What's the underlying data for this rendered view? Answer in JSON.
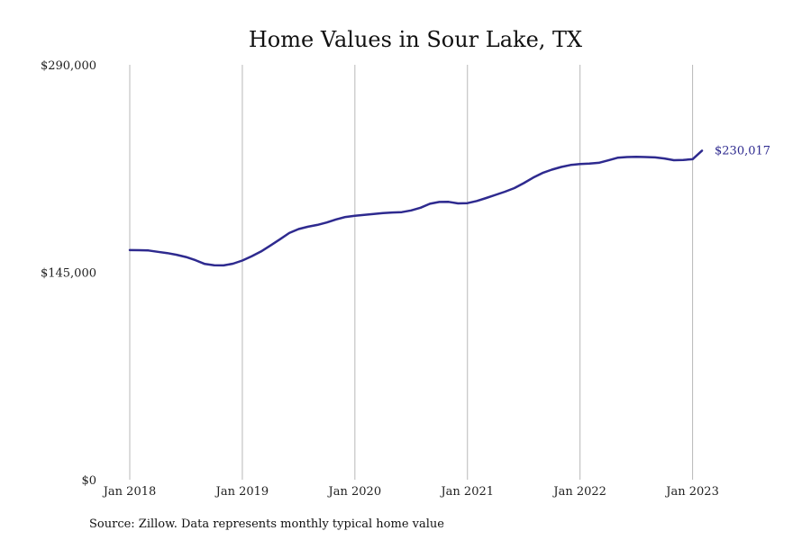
{
  "page": {
    "source_note": "Source: Zillow. Data represents monthly typical home value"
  },
  "colors": {
    "series": "#2e2a8f",
    "grid": "#b8b8b8",
    "text": "#111111"
  },
  "chart_data": {
    "type": "line",
    "title": "Home Values in Sour Lake, TX",
    "xlabel": "",
    "ylabel": "",
    "x_type": "date",
    "xlim": [
      "2018-01",
      "2023-02"
    ],
    "ylim": [
      0,
      290000
    ],
    "grid": {
      "vertical": true,
      "horizontal": false
    },
    "x_ticks": [
      {
        "date": "2018-01",
        "label": "Jan 2018"
      },
      {
        "date": "2019-01",
        "label": "Jan 2019"
      },
      {
        "date": "2020-01",
        "label": "Jan 2020"
      },
      {
        "date": "2021-01",
        "label": "Jan 2021"
      },
      {
        "date": "2022-01",
        "label": "Jan 2022"
      },
      {
        "date": "2023-01",
        "label": "Jan 2023"
      }
    ],
    "y_ticks": [
      {
        "value": 0,
        "label": "$0"
      },
      {
        "value": 145000,
        "label": "$145,000"
      },
      {
        "value": 290000,
        "label": "$290,000"
      }
    ],
    "end_label": "$230,017",
    "series": [
      {
        "x": [
          "2018-01",
          "2018-02",
          "2018-03",
          "2018-04",
          "2018-05",
          "2018-06",
          "2018-07",
          "2018-08",
          "2018-09",
          "2018-10",
          "2018-11",
          "2018-12",
          "2019-01",
          "2019-02",
          "2019-03",
          "2019-04",
          "2019-05",
          "2019-06",
          "2019-07",
          "2019-08",
          "2019-09",
          "2019-10",
          "2019-11",
          "2019-12",
          "2020-01",
          "2020-02",
          "2020-03",
          "2020-04",
          "2020-05",
          "2020-06",
          "2020-07",
          "2020-08",
          "2020-09",
          "2020-10",
          "2020-11",
          "2020-12",
          "2021-01",
          "2021-02",
          "2021-03",
          "2021-04",
          "2021-05",
          "2021-06",
          "2021-07",
          "2021-08",
          "2021-09",
          "2021-10",
          "2021-11",
          "2021-12",
          "2022-01",
          "2022-02",
          "2022-03",
          "2022-04",
          "2022-05",
          "2022-06",
          "2022-07",
          "2022-08",
          "2022-09",
          "2022-10",
          "2022-11",
          "2022-12",
          "2023-01",
          "2023-02"
        ],
        "y": [
          160500,
          160400,
          160200,
          159300,
          158400,
          157200,
          155600,
          153400,
          150800,
          149900,
          149800,
          151000,
          153200,
          156200,
          159500,
          163700,
          168000,
          172400,
          175200,
          176800,
          178100,
          179800,
          181900,
          183600,
          184500,
          185100,
          185700,
          186300,
          186800,
          187000,
          188200,
          190100,
          192900,
          194100,
          194200,
          193100,
          193300,
          194800,
          196900,
          199100,
          201300,
          203800,
          207300,
          211100,
          214400,
          216700,
          218600,
          220000,
          220600,
          220900,
          221500,
          223200,
          225000,
          225500,
          225700,
          225500,
          225300,
          224500,
          223300,
          223500,
          224000,
          230017
        ]
      }
    ]
  }
}
